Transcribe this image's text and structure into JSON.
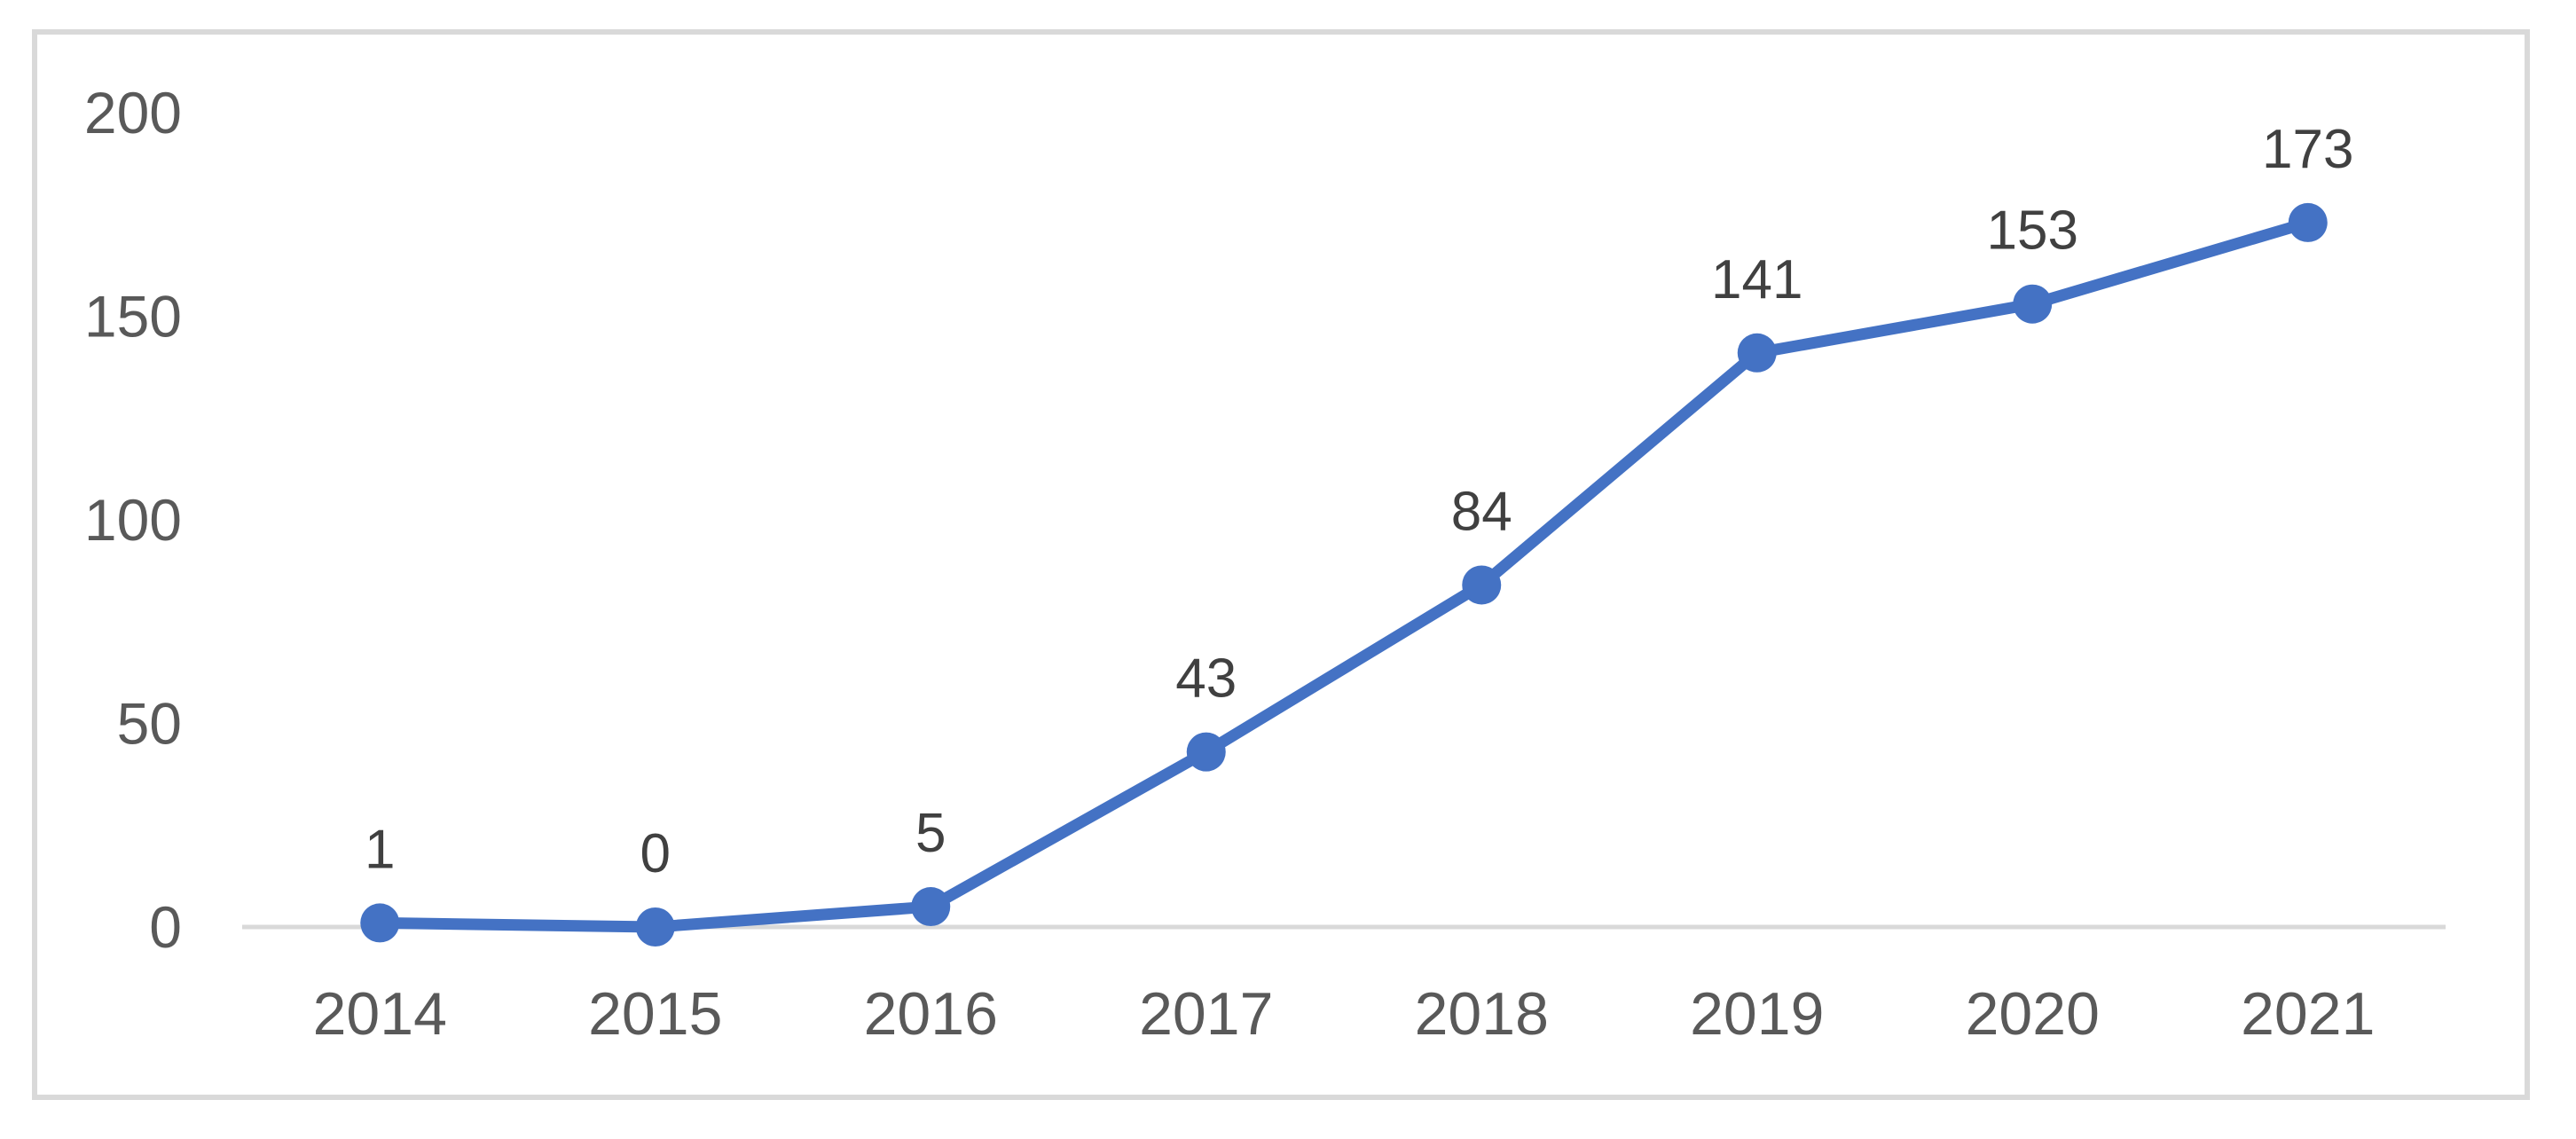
{
  "page": {
    "background_color": "#ffffff",
    "frame_border_color": "#d9d9d9"
  },
  "chart_data": {
    "type": "line",
    "title": "",
    "xlabel": "",
    "ylabel": "",
    "categories": [
      "2014",
      "2015",
      "2016",
      "2017",
      "2018",
      "2019",
      "2020",
      "2021"
    ],
    "series": [
      {
        "name": "",
        "values": [
          1,
          0,
          5,
          43,
          84,
          141,
          153,
          173
        ],
        "color": "#4472C4"
      }
    ],
    "data_labels": [
      "1",
      "0",
      "5",
      "43",
      "84",
      "141",
      "153",
      "173"
    ],
    "ylim": [
      0,
      200
    ],
    "yticks": [
      0,
      50,
      100,
      150,
      200
    ],
    "ytick_labels": [
      "0",
      "50",
      "100",
      "150",
      "200"
    ],
    "grid": false,
    "legend": "none",
    "marker_shape": "circle",
    "axis_line_color": "#d9d9d9",
    "axis_label_color": "#595959",
    "data_label_color": "#404040"
  }
}
